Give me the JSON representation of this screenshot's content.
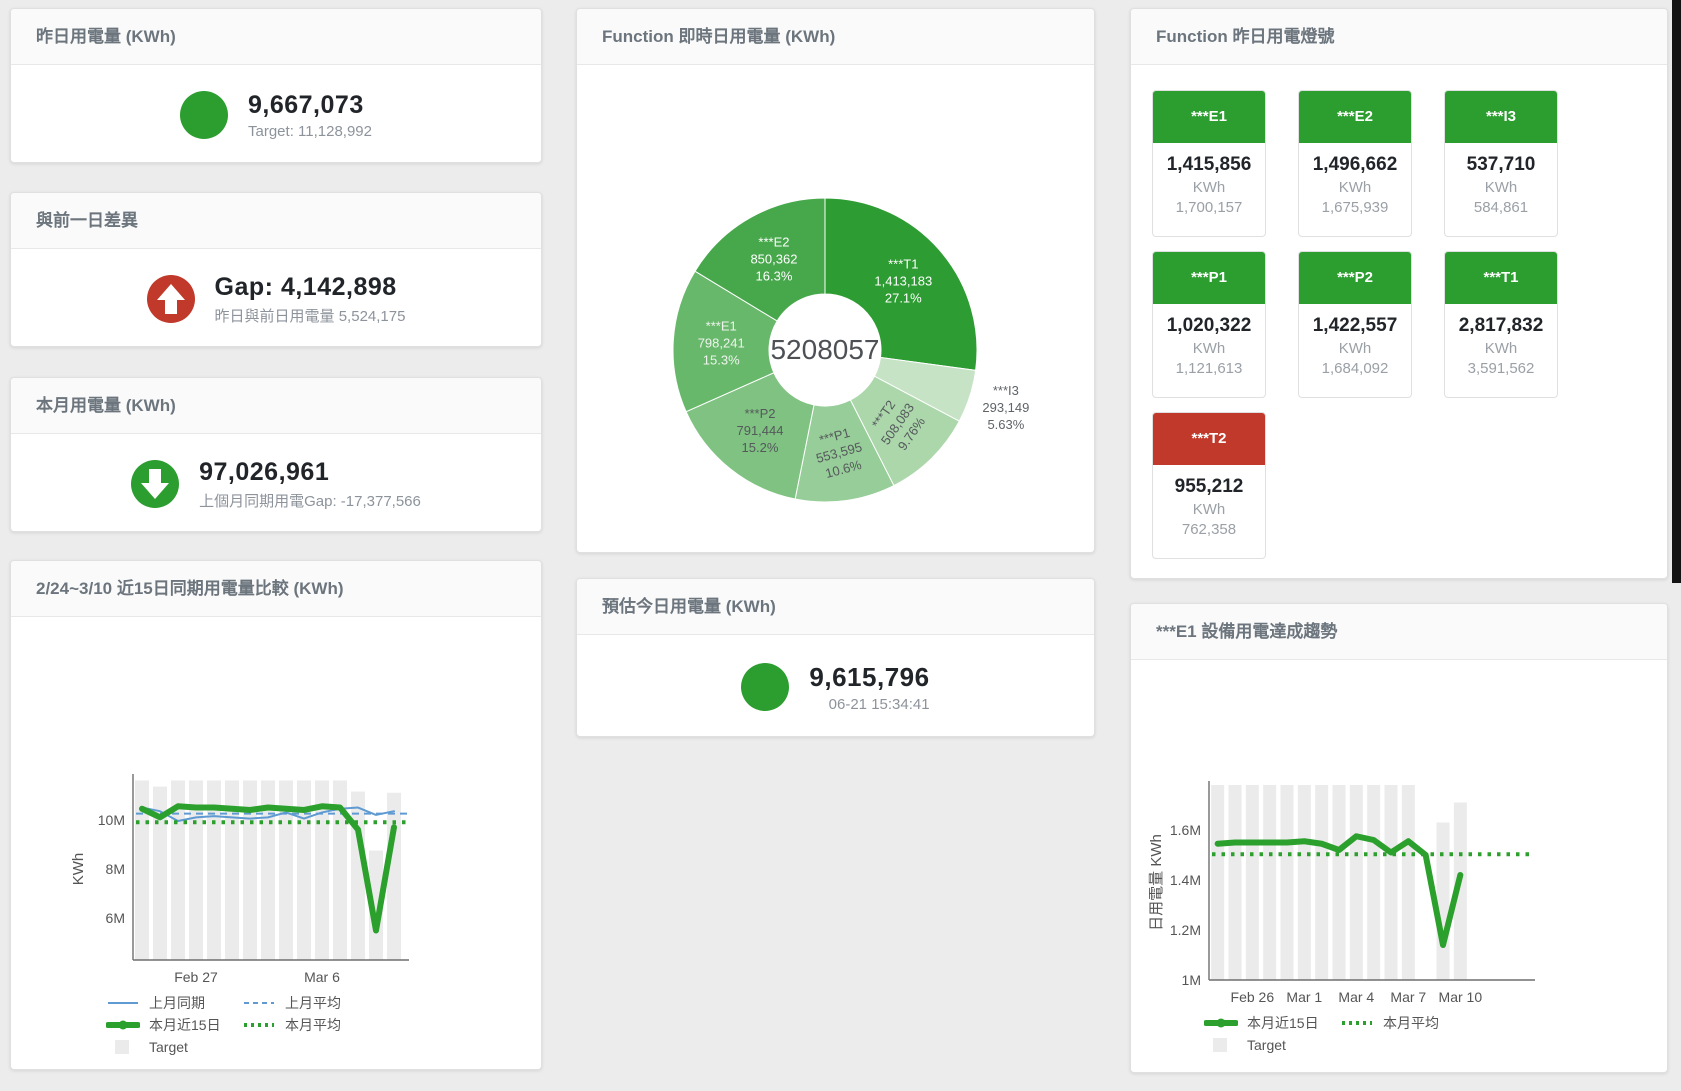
{
  "colors": {
    "green": "#2c9e30",
    "red": "#c0392b",
    "green_line": "#2ca02c",
    "blue_line": "#5f9bd2",
    "target_bar": "#ebebeb",
    "edge_strip": "#141414"
  },
  "cards": {
    "yesterday": {
      "title": "昨日用電量 (KWh)",
      "value": "9,667,073",
      "subtitle": "Target: 11,128,992",
      "status_color": "#2c9e30"
    },
    "gap": {
      "title": "與前一日差異",
      "value": "Gap: 4,142,898",
      "subtitle": "昨日與前日用電量 5,524,175",
      "status_color": "#c0392b",
      "direction": "up"
    },
    "month": {
      "title": "本月用電量 (KWh)",
      "value": "97,026,961",
      "subtitle": "上個月同期用電Gap: -17,377,566",
      "status_color": "#2c9e30",
      "direction": "down"
    },
    "forecast": {
      "title": "預估今日用電量 (KWh)",
      "value": "9,615,796",
      "subtitle": "06-21 15:34:41",
      "status_color": "#2c9e30"
    },
    "donut": {
      "title": "Function 即時日用電量 (KWh)"
    },
    "lights": {
      "title": "Function 昨日用電燈號",
      "unit": "KWh",
      "tiles": [
        {
          "name": "***E1",
          "value": "1,415,856",
          "target": "1,700,157",
          "status": "green"
        },
        {
          "name": "***E2",
          "value": "1,496,662",
          "target": "1,675,939",
          "status": "green"
        },
        {
          "name": "***I3",
          "value": "537,710",
          "target": "584,861",
          "status": "green"
        },
        {
          "name": "***P1",
          "value": "1,020,322",
          "target": "1,121,613",
          "status": "green"
        },
        {
          "name": "***P2",
          "value": "1,422,557",
          "target": "1,684,092",
          "status": "green"
        },
        {
          "name": "***T1",
          "value": "2,817,832",
          "target": "3,591,562",
          "status": "green"
        },
        {
          "name": "***T2",
          "value": "955,212",
          "target": "762,358",
          "status": "red"
        }
      ]
    },
    "compare": {
      "title": "2/24~3/10 近15日同期用電量比較 (KWh)"
    },
    "trend": {
      "title": "***E1 設備用電達成趨勢"
    }
  },
  "chart_data": [
    {
      "id": "donut",
      "type": "pie",
      "title": "Function 即時日用電量 (KWh)",
      "center_label": "5208057",
      "slices": [
        {
          "name": "***T1",
          "value": 1413183,
          "value_label": "1,413,183",
          "pct": "27.1%",
          "color": "#2d9c32",
          "label_color": "#ffffff",
          "label": "in"
        },
        {
          "name": "***I3",
          "value": 293149,
          "value_label": "293,149",
          "pct": "5.63%",
          "color": "#c6e3c6",
          "label_color": "#5f6468",
          "label": "out"
        },
        {
          "name": "***T2",
          "value": 508083,
          "value_label": "508,083",
          "pct": "9.76%",
          "color": "#abd7ab",
          "label_color": "#55595c",
          "label": "in"
        },
        {
          "name": "***P1",
          "value": 553595,
          "value_label": "553,595",
          "pct": "10.6%",
          "color": "#97cd98",
          "label_color": "#55595c",
          "label": "in"
        },
        {
          "name": "***P2",
          "value": 791444,
          "value_label": "791,444",
          "pct": "15.2%",
          "color": "#7fc281",
          "label_color": "#55595c",
          "label": "in"
        },
        {
          "name": "***E1",
          "value": 798241,
          "value_label": "798,241",
          "pct": "15.3%",
          "color": "#68b86b",
          "label_color": "#eef4ee",
          "label": "in"
        },
        {
          "name": "***E2",
          "value": 850362,
          "value_label": "850,362",
          "pct": "16.3%",
          "color": "#47a84b",
          "label_color": "#ffffff",
          "label": "in"
        }
      ]
    },
    {
      "id": "compare",
      "type": "line+bar",
      "title": "2/24~3/10 近15日同期用電量比較 (KWh)",
      "ylabel": "KWh",
      "ylim": [
        4300000,
        11700000
      ],
      "yticks": [
        {
          "v": 6000000,
          "label": "6M"
        },
        {
          "v": 8000000,
          "label": "8M"
        },
        {
          "v": 10000000,
          "label": "10M"
        }
      ],
      "x_count": 15,
      "x_dates": [
        "2/24",
        "2/25",
        "2/26",
        "2/27",
        "2/28",
        "3/1",
        "3/2",
        "3/3",
        "3/4",
        "3/5",
        "3/6",
        "3/7",
        "3/8",
        "3/9",
        "3/10"
      ],
      "xticks": [
        {
          "i": 3,
          "label": "Feb 27"
        },
        {
          "i": 10,
          "label": "Mar 6"
        }
      ],
      "target": {
        "name": "Target",
        "color": "#ebebeb",
        "values": [
          11600000,
          11350000,
          11600000,
          11600000,
          11600000,
          11600000,
          11600000,
          11600000,
          11600000,
          11600000,
          11600000,
          11600000,
          11150000,
          8750000,
          11100000
        ]
      },
      "series": [
        {
          "name": "上月同期",
          "style": "solid",
          "width": 2,
          "color": "#5f9bd2",
          "values": [
            10500000,
            10350000,
            9950000,
            10100000,
            10150000,
            10100000,
            10050000,
            10100000,
            10300000,
            10050000,
            10300000,
            10450000,
            10500000,
            10200000,
            10350000
          ]
        },
        {
          "name": "上月平均",
          "style": "dash",
          "width": 2,
          "color": "#5f9bd2",
          "constant": true,
          "values": [
            10250000
          ]
        },
        {
          "name": "本月平均",
          "style": "dots",
          "width": 4,
          "color": "#2ca02c",
          "constant": true,
          "values": [
            9900000
          ]
        },
        {
          "name": "本月近15日",
          "style": "thick",
          "width": 6,
          "color": "#2ca02c",
          "values": [
            10450000,
            10100000,
            10550000,
            10500000,
            10500000,
            10450000,
            10400000,
            10500000,
            10450000,
            10400000,
            10550000,
            10500000,
            9600000,
            5500000,
            9700000
          ]
        }
      ],
      "legend_rows": [
        [
          {
            "label": "上月同期",
            "marker": "line",
            "color": "#5f9bd2"
          },
          {
            "label": "上月平均",
            "marker": "dash",
            "color": "#5f9bd2"
          }
        ],
        [
          {
            "label": "本月近15日",
            "marker": "thick",
            "color": "#2ca02c"
          },
          {
            "label": "本月平均",
            "marker": "dots",
            "color": "#2ca02c"
          }
        ],
        [
          {
            "label": "Target",
            "marker": "square",
            "color": "#ebebeb"
          }
        ]
      ]
    },
    {
      "id": "trend",
      "type": "line+bar",
      "title": "***E1 設備用電達成趨勢",
      "ylabel": "日用電量 KWh",
      "ylim": [
        1000000,
        1780000
      ],
      "yticks": [
        {
          "v": 1000000,
          "label": "1M"
        },
        {
          "v": 1200000,
          "label": "1.2M"
        },
        {
          "v": 1400000,
          "label": "1.4M"
        },
        {
          "v": 1600000,
          "label": "1.6M"
        }
      ],
      "x_count": 15,
      "x_dates": [
        "2/24",
        "2/25",
        "2/26",
        "2/27",
        "2/28",
        "3/1",
        "3/2",
        "3/3",
        "3/4",
        "3/5",
        "3/6",
        "3/7",
        "3/8",
        "3/9",
        "3/10"
      ],
      "xticks": [
        {
          "i": 2,
          "label": "Feb 26"
        },
        {
          "i": 5,
          "label": "Mar 1"
        },
        {
          "i": 8,
          "label": "Mar 4"
        },
        {
          "i": 11,
          "label": "Mar 7"
        },
        {
          "i": 14,
          "label": "Mar 10"
        }
      ],
      "target": {
        "name": "Target",
        "color": "#ebebeb",
        "values": [
          1780000,
          1780000,
          1780000,
          1780000,
          1780000,
          1780000,
          1780000,
          1780000,
          1780000,
          1780000,
          1780000,
          1780000,
          0,
          1630000,
          1710000
        ]
      },
      "series": [
        {
          "name": "本月平均",
          "style": "dots",
          "width": 4,
          "color": "#2ca02c",
          "constant": true,
          "values": [
            1503000
          ]
        },
        {
          "name": "本月近15日",
          "style": "thick",
          "width": 6,
          "color": "#2ca02c",
          "values": [
            1545000,
            1550000,
            1550000,
            1550000,
            1550000,
            1555000,
            1545000,
            1520000,
            1575000,
            1560000,
            1510000,
            1555000,
            1500000,
            1140000,
            1420000
          ]
        }
      ],
      "legend_rows": [
        [
          {
            "label": "本月近15日",
            "marker": "thick",
            "color": "#2ca02c"
          },
          {
            "label": "本月平均",
            "marker": "dots",
            "color": "#2ca02c"
          }
        ],
        [
          {
            "label": "Target",
            "marker": "square",
            "color": "#ebebeb"
          }
        ]
      ]
    }
  ]
}
